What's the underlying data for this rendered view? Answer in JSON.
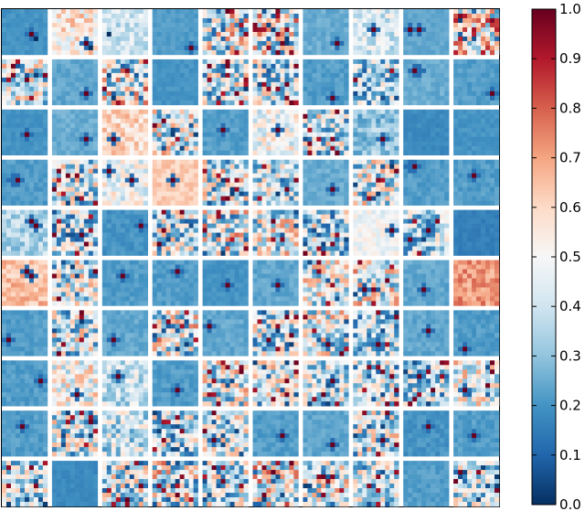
{
  "chart_data": {
    "type": "heatmap",
    "title": "",
    "description_of_layout": "",
    "grid": {
      "rows": 10,
      "cols": 10,
      "cells_per_tile": 10,
      "seed": 12345,
      "tile_base_values": [
        [
          0.2,
          0.55,
          0.4,
          0.22,
          0.45,
          0.48,
          0.25,
          0.42,
          0.24,
          0.55
        ],
        [
          0.45,
          0.24,
          0.48,
          0.2,
          0.45,
          0.4,
          0.22,
          0.35,
          0.25,
          0.22
        ],
        [
          0.2,
          0.25,
          0.6,
          0.45,
          0.22,
          0.48,
          0.4,
          0.3,
          0.18,
          0.2
        ],
        [
          0.22,
          0.42,
          0.48,
          0.62,
          0.45,
          0.4,
          0.25,
          0.45,
          0.22,
          0.22
        ],
        [
          0.35,
          0.35,
          0.2,
          0.4,
          0.45,
          0.45,
          0.38,
          0.48,
          0.35,
          0.16
        ],
        [
          0.65,
          0.42,
          0.22,
          0.22,
          0.2,
          0.24,
          0.45,
          0.48,
          0.24,
          0.72
        ],
        [
          0.22,
          0.42,
          0.24,
          0.45,
          0.24,
          0.38,
          0.45,
          0.35,
          0.24,
          0.22
        ],
        [
          0.22,
          0.5,
          0.4,
          0.22,
          0.45,
          0.48,
          0.4,
          0.42,
          0.38,
          0.48
        ],
        [
          0.22,
          0.4,
          0.4,
          0.38,
          0.45,
          0.22,
          0.24,
          0.42,
          0.2,
          0.22
        ],
        [
          0.4,
          0.18,
          0.42,
          0.45,
          0.4,
          0.5,
          0.45,
          0.42,
          0.22,
          0.4
        ]
      ],
      "tile_noise_levels": [
        [
          0.02,
          0.15,
          0.1,
          0.02,
          0.35,
          0.35,
          0.03,
          0.12,
          0.02,
          0.35
        ],
        [
          0.3,
          0.03,
          0.35,
          0.02,
          0.3,
          0.3,
          0.03,
          0.25,
          0.03,
          0.03
        ],
        [
          0.02,
          0.03,
          0.1,
          0.3,
          0.03,
          0.15,
          0.3,
          0.1,
          0.02,
          0.02
        ],
        [
          0.03,
          0.3,
          0.15,
          0.05,
          0.3,
          0.25,
          0.03,
          0.3,
          0.03,
          0.03
        ],
        [
          0.1,
          0.3,
          0.03,
          0.3,
          0.35,
          0.3,
          0.3,
          0.08,
          0.25,
          0.02
        ],
        [
          0.08,
          0.3,
          0.03,
          0.03,
          0.02,
          0.03,
          0.3,
          0.3,
          0.03,
          0.08
        ],
        [
          0.03,
          0.3,
          0.03,
          0.35,
          0.03,
          0.3,
          0.3,
          0.25,
          0.03,
          0.03
        ],
        [
          0.03,
          0.2,
          0.15,
          0.03,
          0.3,
          0.25,
          0.25,
          0.25,
          0.25,
          0.25
        ],
        [
          0.03,
          0.3,
          0.2,
          0.3,
          0.25,
          0.03,
          0.03,
          0.3,
          0.03,
          0.03
        ],
        [
          0.25,
          0.02,
          0.3,
          0.35,
          0.3,
          0.35,
          0.3,
          0.25,
          0.03,
          0.25
        ]
      ],
      "hot_spots": [
        [
          [
            [
              6,
              5,
              1.0
            ],
            [
              7,
              6,
              0.0
            ]
          ],
          [
            [
              7,
              7,
              1.0
            ],
            [
              8,
              8,
              0.0
            ]
          ],
          [
            [
              1,
              5,
              0.0
            ]
          ],
          [
            [
              8,
              8,
              1.0
            ]
          ],
          [],
          [],
          [
            [
              7,
              7,
              1.0
            ]
          ],
          [
            [
              4,
              4,
              1.0
            ]
          ],
          [
            [
              3,
              4,
              1.0
            ],
            [
              1,
              4,
              1.0
            ]
          ],
          []
        ],
        [
          [],
          [
            [
              7,
              7,
              1.0
            ]
          ],
          [],
          [],
          [],
          [],
          [
            [
              6,
              8,
              1.0
            ]
          ],
          [],
          [
            [
              3,
              2,
              1.0
            ],
            [
              2,
              2,
              1.0
            ]
          ],
          [
            [
              8,
              7,
              1.0
            ]
          ]
        ],
        [
          [
            [
              5,
              5,
              1.0
            ]
          ],
          [
            [
              7,
              6,
              1.0
            ]
          ],
          [
            [
              2,
              6,
              1.0
            ],
            [
              2,
              7,
              0.1
            ]
          ],
          [],
          [
            [
              4,
              4,
              1.0
            ]
          ],
          [
            [
              5,
              4,
              1.0
            ]
          ],
          [],
          [
            [
              6,
              6,
              1.0
            ]
          ],
          [],
          []
        ],
        [
          [
            [
              2,
              4,
              1.0
            ],
            [
              3,
              4,
              1.0
            ]
          ],
          [],
          [
            [
              6,
              4,
              1.0
            ],
            [
              1,
              2,
              1.0
            ]
          ],
          [
            [
              4,
              4,
              1.0
            ]
          ],
          [],
          [],
          [
            [
              6,
              6,
              1.0
            ]
          ],
          [],
          [
            [
              1,
              1,
              1.0
            ],
            [
              2,
              1,
              1.0
            ]
          ],
          [
            [
              4,
              3,
              1.0
            ]
          ]
        ],
        [
          [
            [
              6,
              2,
              1.0
            ],
            [
              7,
              3,
              1.0
            ]
          ],
          [
            [
              6,
              5,
              1.0
            ]
          ],
          [
            [
              8,
              3,
              1.0
            ]
          ],
          [],
          [],
          [],
          [],
          [
            [
              8,
              4,
              1.0
            ]
          ],
          [
            [
              5,
              4,
              1.0
            ]
          ],
          []
        ],
        [
          [
            [
              5,
              2,
              1.0
            ],
            [
              6,
              3,
              1.0
            ]
          ],
          [],
          [
            [
              4,
              3,
              1.0
            ]
          ],
          [
            [
              5,
              2,
              1.0
            ]
          ],
          [
            [
              5,
              5,
              1.0
            ]
          ],
          [
            [
              5,
              5,
              1.0
            ]
          ],
          [],
          [
            [
              2,
              6,
              1.0
            ]
          ],
          [
            [
              4,
              6,
              1.0
            ]
          ],
          []
        ],
        [
          [
            [
              1,
              6,
              1.0
            ]
          ],
          [],
          [
            [
              2,
              6,
              1.0
            ]
          ],
          [],
          [
            [
              1,
              3,
              1.0
            ]
          ],
          [],
          [
            [
              5,
              7,
              1.0
            ]
          ],
          [
            [
              5,
              7,
              1.0
            ]
          ],
          [
            [
              5,
              4,
              1.0
            ]
          ],
          [
            [
              2,
              8,
              1.0
            ]
          ]
        ],
        [
          [
            [
              8,
              4,
              1.0
            ]
          ],
          [
            [
              5,
              7,
              1.0
            ]
          ],
          [
            [
              3,
              3,
              1.0
            ]
          ],
          [
            [
              5,
              6,
              1.0
            ]
          ],
          [],
          [],
          [
            [
              6,
              4,
              1.0
            ]
          ],
          [],
          [
            [
              3,
              3,
              1.0
            ]
          ],
          [
            [
              2,
              6,
              1.0
            ]
          ]
        ],
        [
          [
            [
              4,
              3,
              1.0
            ]
          ],
          [],
          [],
          [],
          [
            [
              2,
              6,
              1.0
            ]
          ],
          [
            [
              6,
              5,
              1.0
            ]
          ],
          [
            [
              6,
              7,
              1.0
            ]
          ],
          [
            [
              6,
              6,
              1.0
            ]
          ],
          [
            [
              5,
              3,
              1.0
            ]
          ],
          [
            [
              4,
              5,
              1.0
            ]
          ]
        ],
        [
          [],
          [],
          [],
          [],
          [],
          [],
          [],
          [],
          [],
          []
        ]
      ]
    },
    "colorbar": {
      "min": 0.0,
      "max": 1.0,
      "ticks": [
        "0.0",
        "0.1",
        "0.2",
        "0.3",
        "0.4",
        "0.5",
        "0.6",
        "0.7",
        "0.8",
        "0.9",
        "1.0"
      ],
      "colormap": "RdBu_r"
    }
  }
}
